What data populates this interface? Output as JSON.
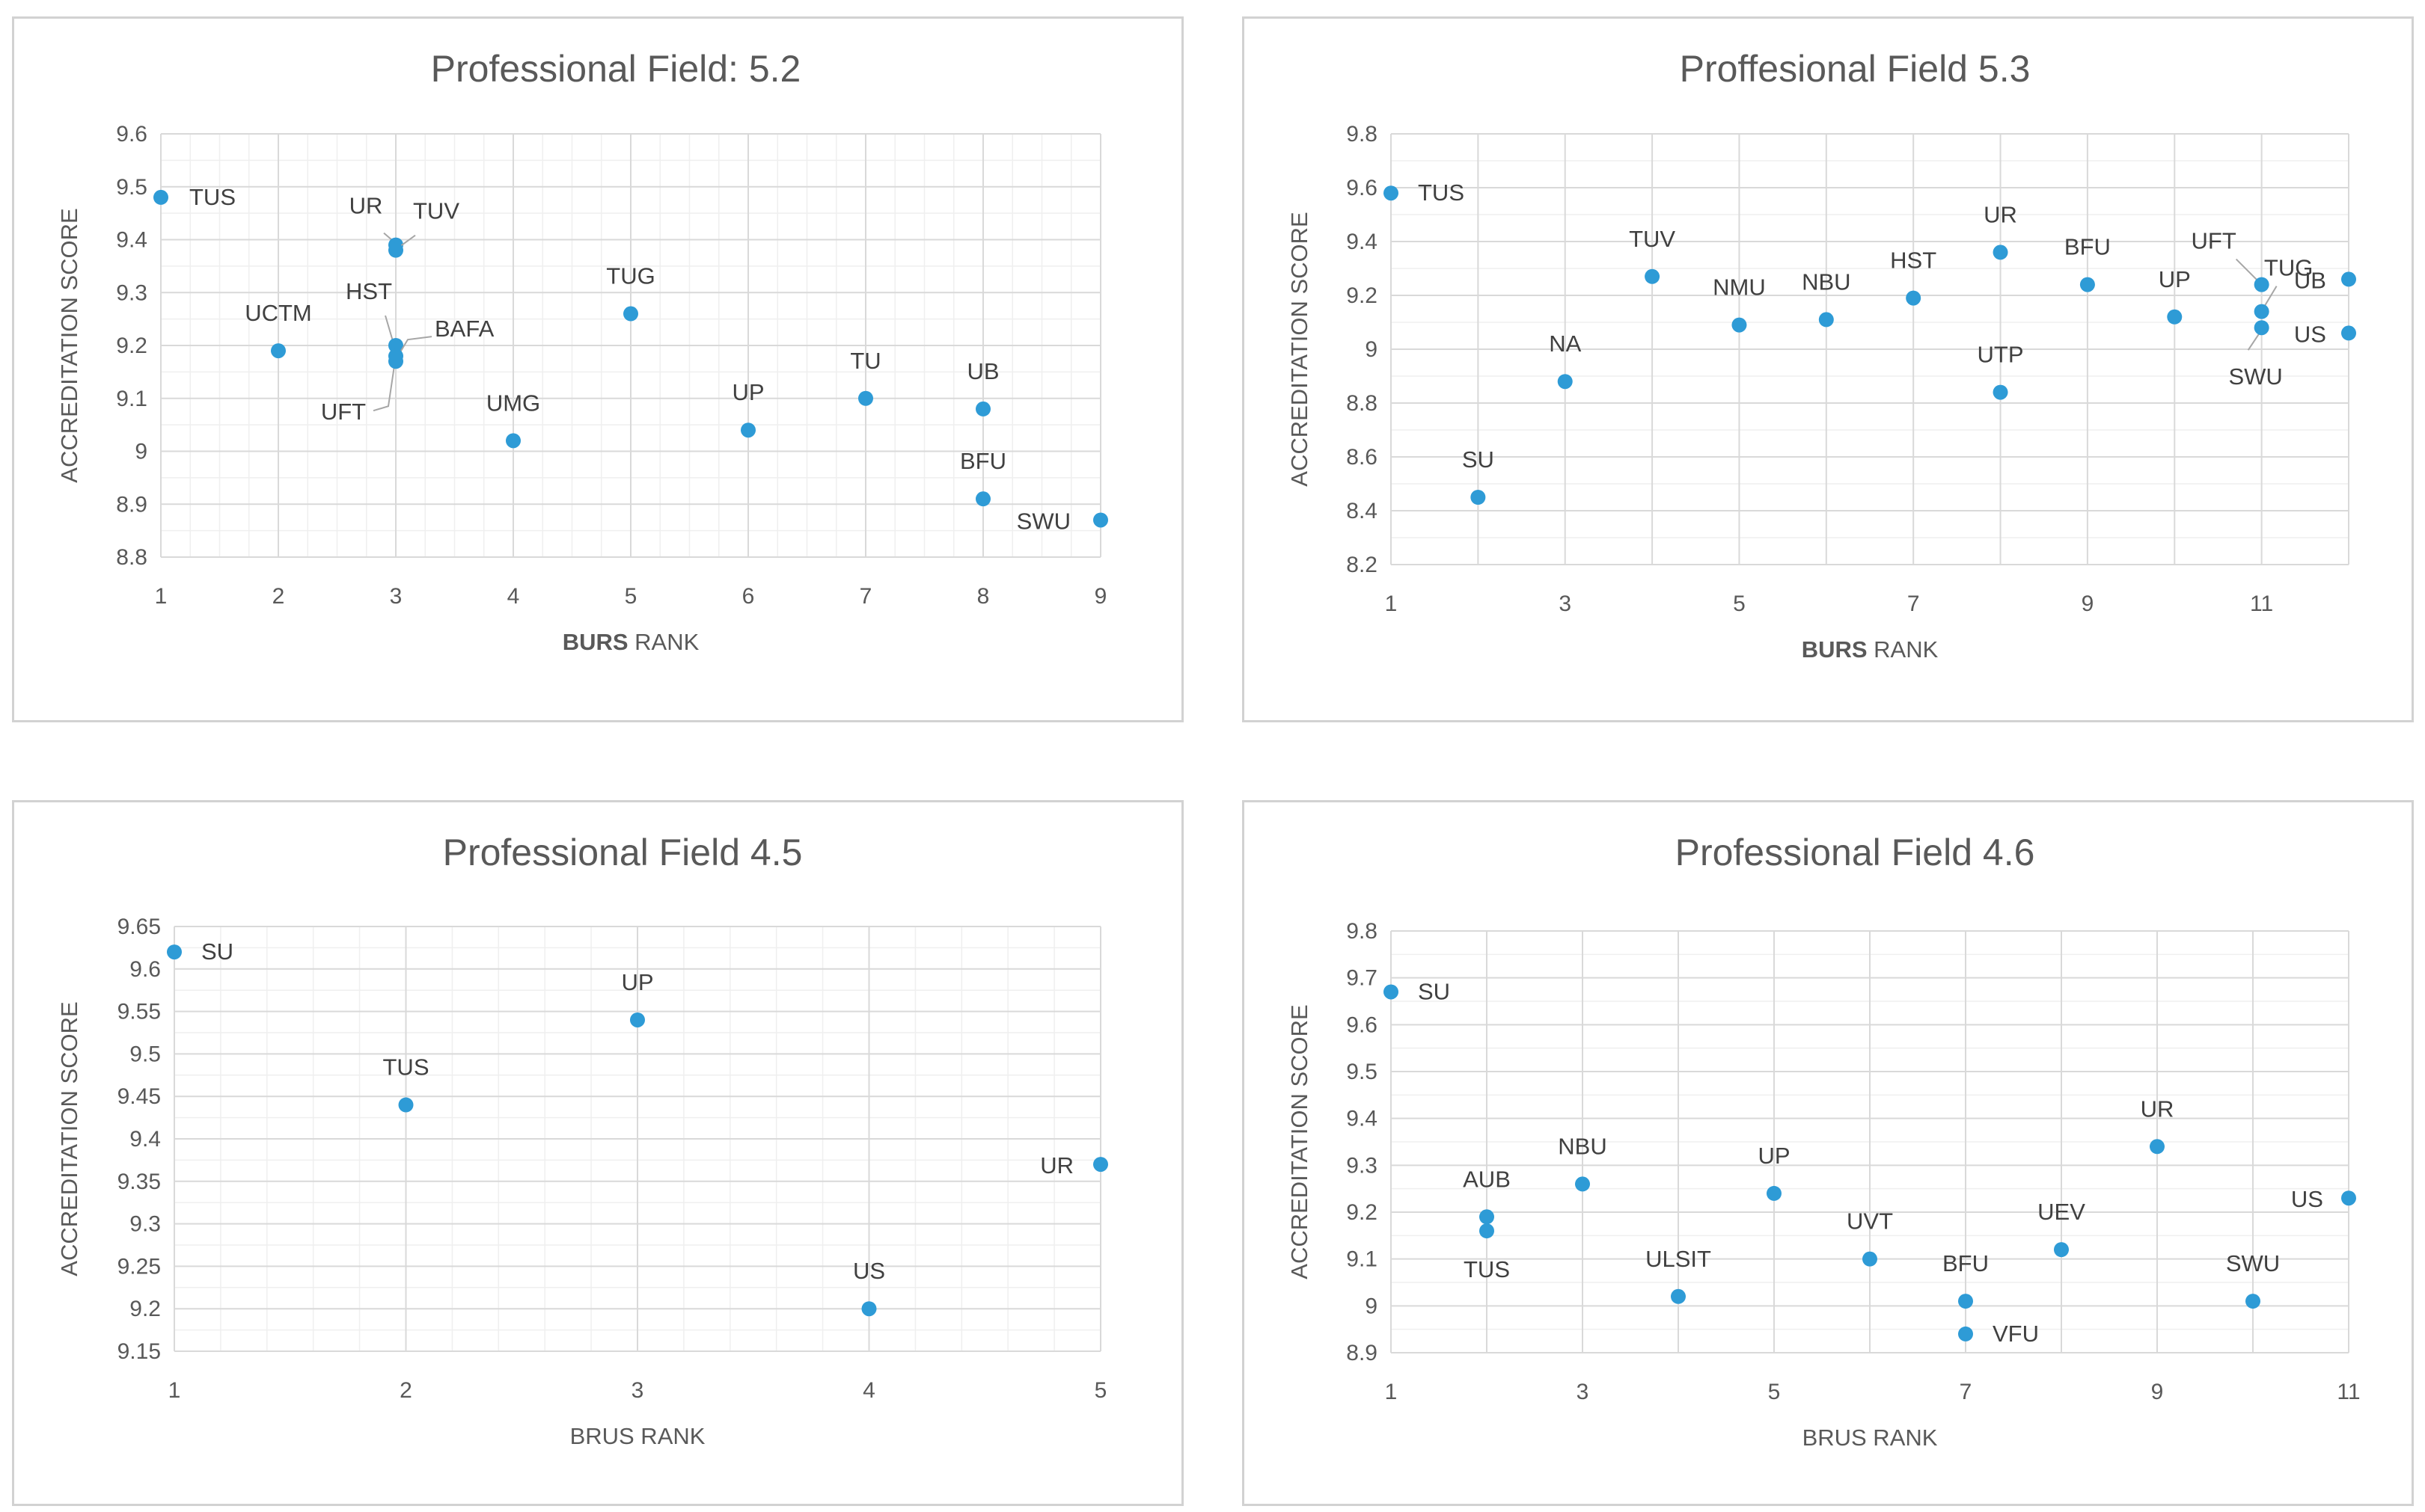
{
  "chart_data": [
    {
      "type": "scatter",
      "title": "Professional Field: 5.2",
      "xlabel_bold": "BURS",
      "xlabel_rest": " RANK",
      "ylabel": "ACCREDITATION SCORE",
      "xlim": [
        1,
        9
      ],
      "ylim": [
        8.8,
        9.6
      ],
      "xticks": [
        1,
        2,
        3,
        4,
        5,
        6,
        7,
        8,
        9
      ],
      "xtick_labels": [
        "1",
        "2",
        "3",
        "4",
        "5",
        "6",
        "7",
        "8",
        "9"
      ],
      "yticks": [
        8.8,
        8.9,
        9.0,
        9.1,
        9.2,
        9.3,
        9.4,
        9.5,
        9.6
      ],
      "ytick_labels": [
        "8.8",
        "8.9",
        "9",
        "9.1",
        "9.2",
        "9.3",
        "9.4",
        "9.5",
        "9.6"
      ],
      "minor_x": 4,
      "minor_y": 2,
      "points": [
        {
          "label": "TUS",
          "x": 1,
          "y": 9.48
        },
        {
          "label": "UCTM",
          "x": 2,
          "y": 9.19
        },
        {
          "label": "UR",
          "x": 3,
          "y": 9.39
        },
        {
          "label": "TUV",
          "x": 3,
          "y": 9.38
        },
        {
          "label": "HST",
          "x": 3,
          "y": 9.2
        },
        {
          "label": "BAFA",
          "x": 3,
          "y": 9.18
        },
        {
          "label": "UFT",
          "x": 3,
          "y": 9.17
        },
        {
          "label": "UMG",
          "x": 4,
          "y": 9.02
        },
        {
          "label": "TUG",
          "x": 5,
          "y": 9.26
        },
        {
          "label": "UP",
          "x": 6,
          "y": 9.04
        },
        {
          "label": "TU",
          "x": 7,
          "y": 9.1
        },
        {
          "label": "UB",
          "x": 8,
          "y": 9.08
        },
        {
          "label": "BFU",
          "x": 8,
          "y": 8.91
        },
        {
          "label": "SWU",
          "x": 9,
          "y": 8.87
        }
      ]
    },
    {
      "type": "scatter",
      "title": "Proffesional Field 5.3",
      "xlabel_bold": "BURS",
      "xlabel_rest": " RANK",
      "ylabel": "ACCREDITATION SCORE",
      "xlim": [
        1,
        12
      ],
      "ylim": [
        8.2,
        9.8
      ],
      "xticks": [
        1,
        3,
        5,
        7,
        9,
        11
      ],
      "xtick_labels": [
        "1",
        "3",
        "5",
        "7",
        "9",
        "11"
      ],
      "yticks": [
        8.2,
        8.4,
        8.6,
        8.8,
        9.0,
        9.2,
        9.4,
        9.6,
        9.8
      ],
      "ytick_labels": [
        "8.2",
        "8.4",
        "8.6",
        "8.8",
        "9",
        "9.2",
        "9.4",
        "9.6",
        "9.8"
      ],
      "minor_x": 2,
      "minor_y": 2,
      "points": [
        {
          "label": "TUS",
          "x": 1,
          "y": 9.58
        },
        {
          "label": "SU",
          "x": 2,
          "y": 8.45
        },
        {
          "label": "NA",
          "x": 3,
          "y": 8.88
        },
        {
          "label": "TUV",
          "x": 4,
          "y": 9.27
        },
        {
          "label": "NMU",
          "x": 5,
          "y": 9.09
        },
        {
          "label": "NBU",
          "x": 6,
          "y": 9.11
        },
        {
          "label": "HST",
          "x": 7,
          "y": 9.19
        },
        {
          "label": "UR",
          "x": 8,
          "y": 9.36
        },
        {
          "label": "UTP",
          "x": 8,
          "y": 8.84
        },
        {
          "label": "BFU",
          "x": 9,
          "y": 9.24
        },
        {
          "label": "UP",
          "x": 10,
          "y": 9.12
        },
        {
          "label": "UFT",
          "x": 11,
          "y": 9.24
        },
        {
          "label": "TUG",
          "x": 11,
          "y": 9.14
        },
        {
          "label": "SWU",
          "x": 11,
          "y": 9.08
        },
        {
          "label": "UB",
          "x": 12,
          "y": 9.26
        },
        {
          "label": "US",
          "x": 12,
          "y": 9.06
        }
      ]
    },
    {
      "type": "scatter",
      "title": "Professional Field 4.5",
      "xlabel_bold": "",
      "xlabel_rest": "BRUS RANK",
      "ylabel": "ACCREDITATION SCORE",
      "xlim": [
        1,
        5
      ],
      "ylim": [
        9.15,
        9.65
      ],
      "xticks": [
        1,
        2,
        3,
        4,
        5
      ],
      "xtick_labels": [
        "1",
        "2",
        "3",
        "4",
        "5"
      ],
      "yticks": [
        9.15,
        9.2,
        9.25,
        9.3,
        9.35,
        9.4,
        9.45,
        9.5,
        9.55,
        9.6,
        9.65
      ],
      "ytick_labels": [
        "9.15",
        "9.2",
        "9.25",
        "9.3",
        "9.35",
        "9.4",
        "9.45",
        "9.5",
        "9.55",
        "9.6",
        "9.65"
      ],
      "minor_x": 5,
      "minor_y": 2,
      "points": [
        {
          "label": "SU",
          "x": 1,
          "y": 9.62
        },
        {
          "label": "TUS",
          "x": 2,
          "y": 9.44
        },
        {
          "label": "UP",
          "x": 3,
          "y": 9.54
        },
        {
          "label": "US",
          "x": 4,
          "y": 9.2
        },
        {
          "label": "UR",
          "x": 5,
          "y": 9.37
        }
      ]
    },
    {
      "type": "scatter",
      "title": "Professional Field 4.6",
      "xlabel_bold": "",
      "xlabel_rest": "BRUS RANK",
      "ylabel": "ACCREDITATION SCORE",
      "xlim": [
        1,
        11
      ],
      "ylim": [
        8.9,
        9.8
      ],
      "xticks": [
        1,
        3,
        5,
        7,
        9,
        11
      ],
      "xtick_labels": [
        "1",
        "3",
        "5",
        "7",
        "9",
        "11"
      ],
      "yticks": [
        8.9,
        9.0,
        9.1,
        9.2,
        9.3,
        9.4,
        9.5,
        9.6,
        9.7,
        9.8
      ],
      "ytick_labels": [
        "8.9",
        "9",
        "9.1",
        "9.2",
        "9.3",
        "9.4",
        "9.5",
        "9.6",
        "9.7",
        "9.8"
      ],
      "minor_x": 2,
      "minor_y": 2,
      "points": [
        {
          "label": "SU",
          "x": 1,
          "y": 9.67
        },
        {
          "label": "AUB",
          "x": 2,
          "y": 9.19
        },
        {
          "label": "TUS",
          "x": 2,
          "y": 9.16
        },
        {
          "label": "NBU",
          "x": 3,
          "y": 9.26
        },
        {
          "label": "ULSIT",
          "x": 4,
          "y": 9.02
        },
        {
          "label": "UP",
          "x": 5,
          "y": 9.24
        },
        {
          "label": "UVT",
          "x": 6,
          "y": 9.1
        },
        {
          "label": "BFU",
          "x": 7,
          "y": 9.01
        },
        {
          "label": "VFU",
          "x": 7,
          "y": 8.94
        },
        {
          "label": "UEV",
          "x": 8,
          "y": 9.12
        },
        {
          "label": "UR",
          "x": 9,
          "y": 9.34
        },
        {
          "label": "SWU",
          "x": 10,
          "y": 9.01
        },
        {
          "label": "US",
          "x": 11,
          "y": 9.23
        }
      ]
    }
  ]
}
